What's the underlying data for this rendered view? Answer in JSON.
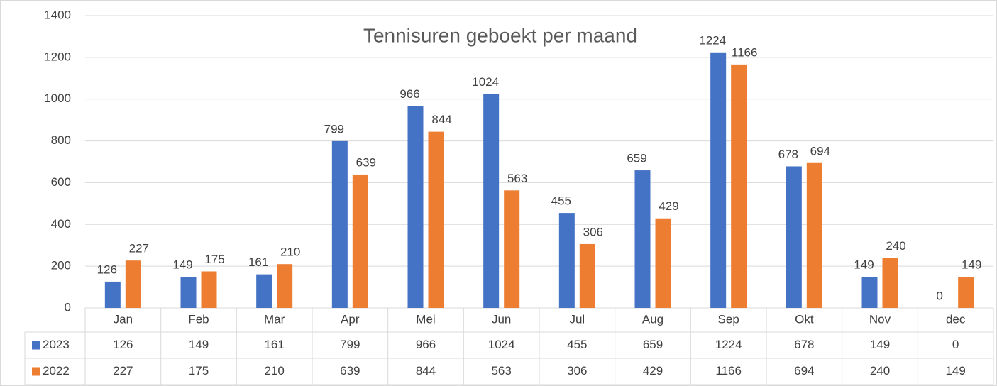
{
  "chart_data": {
    "type": "bar",
    "title": "Tennisuren geboekt per maand",
    "categories": [
      "Jan",
      "Feb",
      "Mar",
      "Apr",
      "Mei",
      "Jun",
      "Jul",
      "Aug",
      "Sep",
      "Okt",
      "Nov",
      "dec"
    ],
    "series": [
      {
        "name": "2023",
        "color": "#4472c4",
        "values": [
          126,
          149,
          161,
          799,
          966,
          1024,
          455,
          659,
          1224,
          678,
          149,
          0
        ]
      },
      {
        "name": "2022",
        "color": "#ed7d31",
        "values": [
          227,
          175,
          210,
          639,
          844,
          563,
          306,
          429,
          1166,
          694,
          240,
          149
        ]
      }
    ],
    "ylim": [
      0,
      1400
    ],
    "yticks": [
      0,
      200,
      400,
      600,
      800,
      1000,
      1200,
      1400
    ],
    "grid": true,
    "data_labels": true,
    "data_table": true
  }
}
